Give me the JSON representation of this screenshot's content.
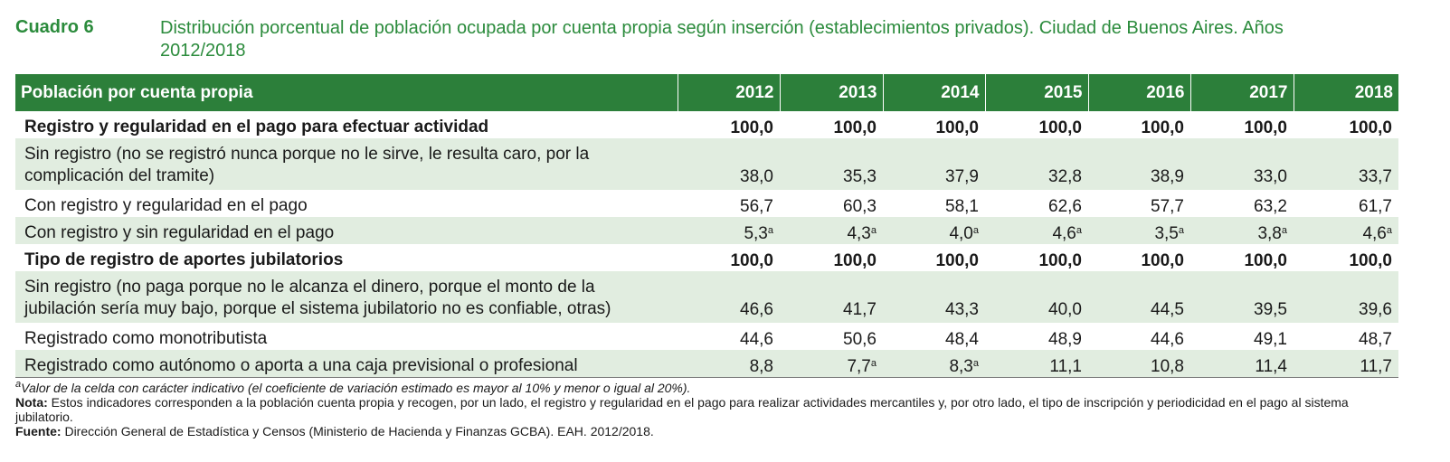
{
  "header": {
    "cuadro": "Cuadro 6",
    "title": "Distribución porcentual de población ocupada por cuenta propia según inserción (establecimientos privados). Ciudad de Buenos Aires. Años 2012/2018"
  },
  "table": {
    "columns": [
      "Población por cuenta propia",
      "2012",
      "2013",
      "2014",
      "2015",
      "2016",
      "2017",
      "2018"
    ],
    "rows": [
      {
        "label": "Registro y regularidad en el pago para efectuar actividad",
        "section": true,
        "values": [
          [
            "100,0",
            ""
          ],
          [
            "100,0",
            ""
          ],
          [
            "100,0",
            ""
          ],
          [
            "100,0",
            ""
          ],
          [
            "100,0",
            ""
          ],
          [
            "100,0",
            ""
          ],
          [
            "100,0",
            ""
          ]
        ]
      },
      {
        "label": "Sin registro (no se registró nunca porque no le sirve, le resulta caro, por la complicación del tramite)",
        "values": [
          [
            "38,0",
            ""
          ],
          [
            "35,3",
            ""
          ],
          [
            "37,9",
            ""
          ],
          [
            "32,8",
            ""
          ],
          [
            "38,9",
            ""
          ],
          [
            "33,0",
            ""
          ],
          [
            "33,7",
            ""
          ]
        ]
      },
      {
        "label": "Con registro y regularidad en el pago",
        "values": [
          [
            "56,7",
            ""
          ],
          [
            "60,3",
            ""
          ],
          [
            "58,1",
            ""
          ],
          [
            "62,6",
            ""
          ],
          [
            "57,7",
            ""
          ],
          [
            "63,2",
            ""
          ],
          [
            "61,7",
            ""
          ]
        ]
      },
      {
        "label": "Con registro y sin regularidad en el pago",
        "values": [
          [
            "5,3",
            "a"
          ],
          [
            "4,3",
            "a"
          ],
          [
            "4,0",
            "a"
          ],
          [
            "4,6",
            "a"
          ],
          [
            "3,5",
            "a"
          ],
          [
            "3,8",
            "a"
          ],
          [
            "4,6",
            "a"
          ]
        ]
      },
      {
        "label": "Tipo de registro de aportes jubilatorios",
        "section": true,
        "values": [
          [
            "100,0",
            ""
          ],
          [
            "100,0",
            ""
          ],
          [
            "100,0",
            ""
          ],
          [
            "100,0",
            ""
          ],
          [
            "100,0",
            ""
          ],
          [
            "100,0",
            ""
          ],
          [
            "100,0",
            ""
          ]
        ]
      },
      {
        "label": "Sin registro (no paga porque no le alcanza el dinero, porque el monto de la jubilación sería muy bajo, porque el sistema jubilatorio no es confiable, otras)",
        "values": [
          [
            "46,6",
            ""
          ],
          [
            "41,7",
            ""
          ],
          [
            "43,3",
            ""
          ],
          [
            "40,0",
            ""
          ],
          [
            "44,5",
            ""
          ],
          [
            "39,5",
            ""
          ],
          [
            "39,6",
            ""
          ]
        ]
      },
      {
        "label": "Registrado como monotributista",
        "values": [
          [
            "44,6",
            ""
          ],
          [
            "50,6",
            ""
          ],
          [
            "48,4",
            ""
          ],
          [
            "48,9",
            ""
          ],
          [
            "44,6",
            ""
          ],
          [
            "49,1",
            ""
          ],
          [
            "48,7",
            ""
          ]
        ]
      },
      {
        "label": "Registrado como autónomo o aporta a una caja previsional o profesional",
        "values": [
          [
            "8,8",
            ""
          ],
          [
            "7,7",
            "a"
          ],
          [
            "8,3",
            "a"
          ],
          [
            "11,1",
            ""
          ],
          [
            "10,8",
            ""
          ],
          [
            "11,4",
            ""
          ],
          [
            "11,7",
            ""
          ]
        ]
      }
    ]
  },
  "footnotes": {
    "a_mark": "a",
    "a_text": "Valor de la celda con carácter indicativo (el coeficiente de variación estimado es mayor al 10% y menor o igual al 20%).",
    "nota_label": "Nota:",
    "nota_text": " Estos indicadores corresponden a la población cuenta propia y recogen, por un lado, el registro y regularidad en el pago para realizar actividades mercantiles y, por otro lado, el tipo de inscripción y periodicidad en el pago al sistema jubilatorio.",
    "fuente_label": "Fuente:",
    "fuente_text": " Dirección General de Estadística y Censos (Ministerio de Hacienda y Finanzas GCBA). EAH. 2012/2018."
  },
  "colors": {
    "header_green": "#2c7f3a",
    "title_green": "#2b8b3c",
    "shade": "#e1ede0"
  }
}
